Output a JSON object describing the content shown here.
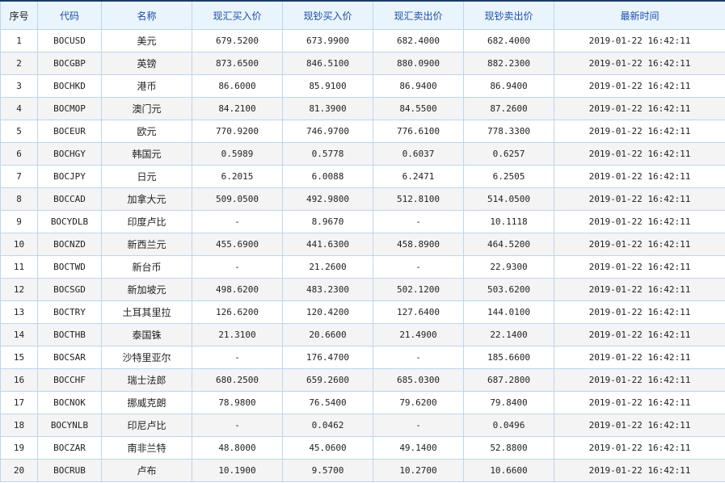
{
  "headers": [
    "序号",
    "代码",
    "名称",
    "现汇买入价",
    "现钞买入价",
    "现汇卖出价",
    "现钞卖出价",
    "最新时间"
  ],
  "rows": [
    [
      "1",
      "BOCUSD",
      "美元",
      "679.5200",
      "673.9900",
      "682.4000",
      "682.4000",
      "2019-01-22 16:42:11"
    ],
    [
      "2",
      "BOCGBP",
      "英镑",
      "873.6500",
      "846.5100",
      "880.0900",
      "882.2300",
      "2019-01-22 16:42:11"
    ],
    [
      "3",
      "BOCHKD",
      "港币",
      "86.6000",
      "85.9100",
      "86.9400",
      "86.9400",
      "2019-01-22 16:42:11"
    ],
    [
      "4",
      "BOCMOP",
      "澳门元",
      "84.2100",
      "81.3900",
      "84.5500",
      "87.2600",
      "2019-01-22 16:42:11"
    ],
    [
      "5",
      "BOCEUR",
      "欧元",
      "770.9200",
      "746.9700",
      "776.6100",
      "778.3300",
      "2019-01-22 16:42:11"
    ],
    [
      "6",
      "BOCHGY",
      "韩国元",
      "0.5989",
      "0.5778",
      "0.6037",
      "0.6257",
      "2019-01-22 16:42:11"
    ],
    [
      "7",
      "BOCJPY",
      "日元",
      "6.2015",
      "6.0088",
      "6.2471",
      "6.2505",
      "2019-01-22 16:42:11"
    ],
    [
      "8",
      "BOCCAD",
      "加拿大元",
      "509.0500",
      "492.9800",
      "512.8100",
      "514.0500",
      "2019-01-22 16:42:11"
    ],
    [
      "9",
      "BOCYDLB",
      "印度卢比",
      "-",
      "8.9670",
      "-",
      "10.1118",
      "2019-01-22 16:42:11"
    ],
    [
      "10",
      "BOCNZD",
      "新西兰元",
      "455.6900",
      "441.6300",
      "458.8900",
      "464.5200",
      "2019-01-22 16:42:11"
    ],
    [
      "11",
      "BOCTWD",
      "新台币",
      "-",
      "21.2600",
      "-",
      "22.9300",
      "2019-01-22 16:42:11"
    ],
    [
      "12",
      "BOCSGD",
      "新加坡元",
      "498.6200",
      "483.2300",
      "502.1200",
      "503.6200",
      "2019-01-22 16:42:11"
    ],
    [
      "13",
      "BOCTRY",
      "土耳其里拉",
      "126.6200",
      "120.4200",
      "127.6400",
      "144.0100",
      "2019-01-22 16:42:11"
    ],
    [
      "14",
      "BOCTHB",
      "泰国铢",
      "21.3100",
      "20.6600",
      "21.4900",
      "22.1400",
      "2019-01-22 16:42:11"
    ],
    [
      "15",
      "BOCSAR",
      "沙特里亚尔",
      "-",
      "176.4700",
      "-",
      "185.6600",
      "2019-01-22 16:42:11"
    ],
    [
      "16",
      "BOCCHF",
      "瑞士法郎",
      "680.2500",
      "659.2600",
      "685.0300",
      "687.2800",
      "2019-01-22 16:42:11"
    ],
    [
      "17",
      "BOCNOK",
      "挪威克朗",
      "78.9800",
      "76.5400",
      "79.6200",
      "79.8400",
      "2019-01-22 16:42:11"
    ],
    [
      "18",
      "BOCYNLB",
      "印尼卢比",
      "-",
      "0.0462",
      "-",
      "0.0496",
      "2019-01-22 16:42:11"
    ],
    [
      "19",
      "BOCZAR",
      "南非兰特",
      "48.8000",
      "45.0600",
      "49.1400",
      "52.8800",
      "2019-01-22 16:42:11"
    ],
    [
      "20",
      "BOCRUB",
      "卢布",
      "10.1900",
      "9.5700",
      "10.2700",
      "10.6600",
      "2019-01-22 16:42:11"
    ]
  ]
}
